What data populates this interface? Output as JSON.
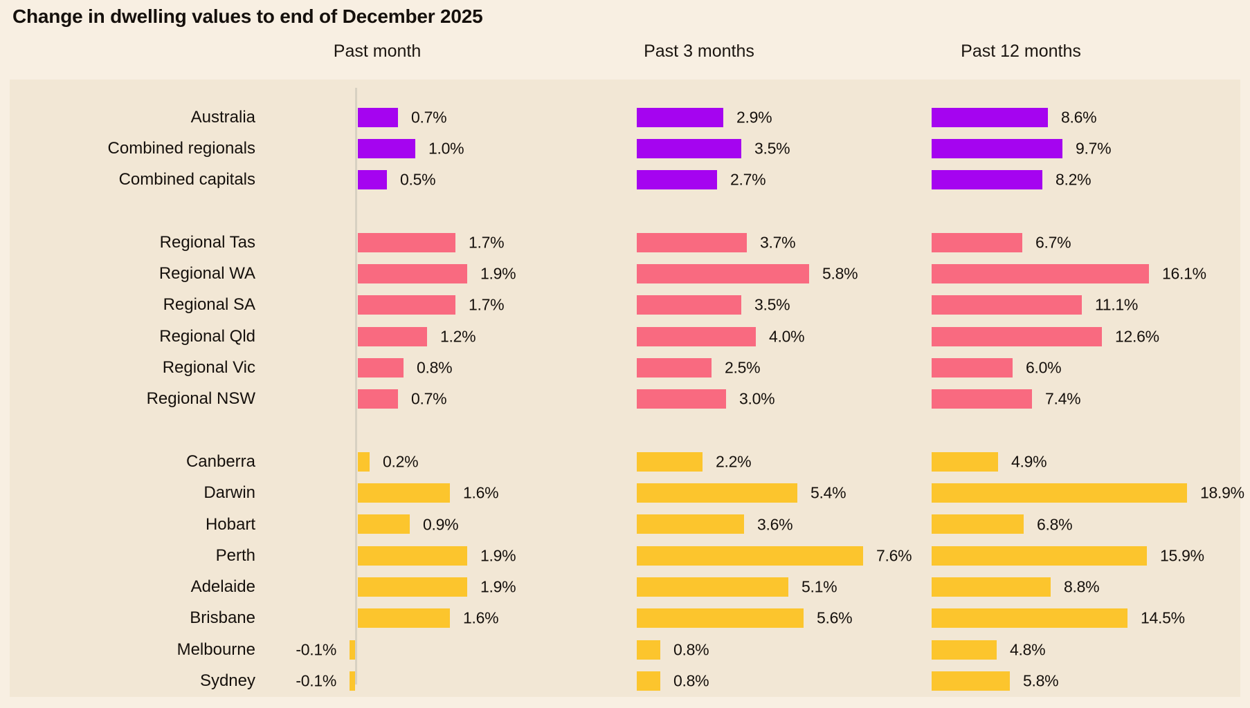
{
  "title": "Change in dwelling values to end of December 2025",
  "columns": [
    {
      "label": "Past month"
    },
    {
      "label": "Past 3 months"
    },
    {
      "label": "Past 12 months"
    }
  ],
  "colors": {
    "national_purple": "#a504f0",
    "regional_pink": "#f96a80",
    "capital_yellow": "#fcc52d",
    "panel_background": "#f2e7d5",
    "page_background": "#f8efe2",
    "axis_line": "#d8d1c2",
    "text": "#15100c"
  },
  "chart_data": {
    "type": "bar",
    "orientation": "horizontal",
    "title": "Change in dwelling values to end of December 2025",
    "value_suffix": "%",
    "legend": "none",
    "grid": "off",
    "baseline_axis_on_first_panel": true,
    "panel_labels": [
      "Past month",
      "Past 3 months",
      "Past 12 months"
    ],
    "groups": [
      {
        "name": "national",
        "color": "#a504f0",
        "categories": [
          "Australia",
          "Combined regionals",
          "Combined capitals"
        ]
      },
      {
        "name": "regional",
        "color": "#f96a80",
        "categories": [
          "Regional Tas",
          "Regional WA",
          "Regional SA",
          "Regional Qld",
          "Regional Vic",
          "Regional NSW"
        ]
      },
      {
        "name": "capitals",
        "color": "#fcc52d",
        "categories": [
          "Canberra",
          "Darwin",
          "Hobart",
          "Perth",
          "Adelaide",
          "Brisbane",
          "Melbourne",
          "Sydney"
        ]
      }
    ],
    "categories": [
      "Australia",
      "Combined regionals",
      "Combined capitals",
      "Regional Tas",
      "Regional WA",
      "Regional SA",
      "Regional Qld",
      "Regional Vic",
      "Regional NSW",
      "Canberra",
      "Darwin",
      "Hobart",
      "Perth",
      "Adelaide",
      "Brisbane",
      "Melbourne",
      "Sydney"
    ],
    "series": [
      {
        "name": "Past month",
        "values": [
          0.7,
          1.0,
          0.5,
          1.7,
          1.9,
          1.7,
          1.2,
          0.8,
          0.7,
          0.2,
          1.6,
          0.9,
          1.9,
          1.9,
          1.6,
          -0.1,
          -0.1
        ]
      },
      {
        "name": "Past 3 months",
        "values": [
          2.9,
          3.5,
          2.7,
          3.7,
          5.8,
          3.5,
          4.0,
          2.5,
          3.0,
          2.2,
          5.4,
          3.6,
          7.6,
          5.1,
          5.6,
          0.8,
          0.8
        ]
      },
      {
        "name": "Past 12 months",
        "values": [
          8.6,
          9.7,
          8.2,
          6.7,
          16.1,
          11.1,
          12.6,
          6.0,
          7.4,
          4.9,
          18.9,
          6.8,
          15.9,
          8.8,
          14.5,
          4.8,
          5.8
        ]
      }
    ]
  }
}
